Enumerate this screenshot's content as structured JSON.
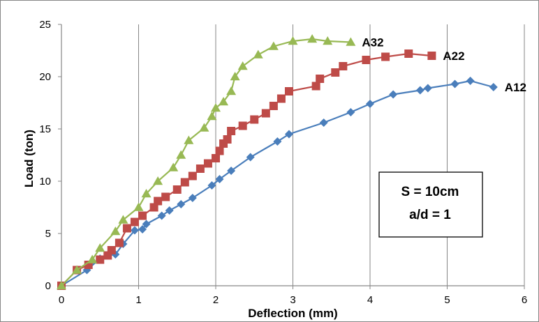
{
  "chart_data": {
    "type": "line",
    "xlabel": "Deflection (mm)",
    "ylabel": "Load (ton)",
    "xlim": [
      0,
      6
    ],
    "ylim": [
      0,
      25
    ],
    "xticks": [
      "0",
      "1",
      "2",
      "3",
      "4",
      "5",
      "6"
    ],
    "yticks": [
      "0",
      "5",
      "10",
      "15",
      "20",
      "25"
    ],
    "grid": "vertical",
    "annotation": [
      "S = 10cm",
      "a/d = 1"
    ],
    "series": [
      {
        "name": "A12",
        "color": "#4a7ebb",
        "marker": "diamond",
        "x": [
          0,
          0.33,
          0.5,
          0.6,
          0.7,
          0.8,
          0.95,
          1.05,
          1.1,
          1.3,
          1.4,
          1.55,
          1.7,
          1.95,
          2.05,
          2.2,
          2.45,
          2.8,
          2.95,
          3.4,
          3.75,
          4.0,
          4.3,
          4.65,
          4.75,
          5.1,
          5.3,
          5.6
        ],
        "y": [
          0,
          1.5,
          2.6,
          2.9,
          3.0,
          4.0,
          5.3,
          5.4,
          5.9,
          6.7,
          7.2,
          7.8,
          8.4,
          9.6,
          10.2,
          11.0,
          12.3,
          13.8,
          14.5,
          15.6,
          16.6,
          17.4,
          18.3,
          18.7,
          18.9,
          19.3,
          19.6,
          19.0
        ]
      },
      {
        "name": "A22",
        "color": "#be4b48",
        "marker": "square",
        "x": [
          0,
          0.2,
          0.35,
          0.5,
          0.6,
          0.65,
          0.75,
          0.85,
          0.95,
          1.05,
          1.2,
          1.25,
          1.35,
          1.5,
          1.6,
          1.7,
          1.8,
          1.9,
          2.0,
          2.05,
          2.1,
          2.15,
          2.2,
          2.35,
          2.5,
          2.65,
          2.75,
          2.85,
          2.95,
          3.3,
          3.35,
          3.55,
          3.65,
          3.95,
          4.2,
          4.5,
          4.8
        ],
        "y": [
          0,
          1.5,
          2.0,
          2.5,
          2.9,
          3.4,
          4.1,
          5.5,
          6.1,
          6.7,
          7.5,
          8.1,
          8.5,
          9.2,
          9.9,
          10.5,
          11.2,
          11.7,
          12.2,
          12.9,
          13.6,
          14.0,
          14.8,
          15.3,
          15.9,
          16.5,
          17.2,
          17.9,
          18.6,
          19.1,
          19.8,
          20.4,
          21.0,
          21.6,
          21.9,
          22.2,
          22.0
        ]
      },
      {
        "name": "A32",
        "color": "#98b954",
        "marker": "triangle",
        "x": [
          0,
          0.2,
          0.4,
          0.5,
          0.7,
          0.8,
          1.0,
          1.1,
          1.25,
          1.45,
          1.55,
          1.65,
          1.85,
          1.95,
          2.0,
          2.1,
          2.2,
          2.25,
          2.35,
          2.55,
          2.75,
          3.0,
          3.25,
          3.45,
          3.75
        ],
        "y": [
          0,
          1.5,
          2.5,
          3.6,
          5.2,
          6.3,
          7.5,
          8.8,
          10.0,
          11.3,
          12.5,
          13.9,
          15.1,
          16.2,
          17.0,
          17.6,
          18.6,
          20.0,
          21.0,
          22.1,
          22.9,
          23.4,
          23.6,
          23.4,
          23.3
        ]
      }
    ]
  }
}
